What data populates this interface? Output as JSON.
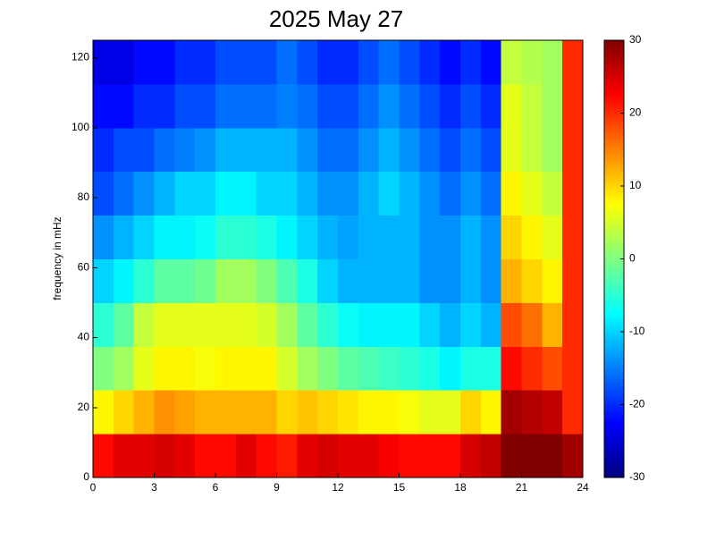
{
  "chart_data": {
    "type": "heatmap",
    "title": "2025 May 27",
    "ylabel": "frequency in mHz",
    "colormap": "jet",
    "xbins": [
      0,
      1,
      2,
      3,
      4,
      5,
      6,
      7,
      8,
      9,
      10,
      11,
      12,
      13,
      14,
      15,
      16,
      17,
      18,
      19,
      20,
      21,
      22,
      23,
      24
    ],
    "ybins": [
      0,
      12.5,
      25,
      37.5,
      50,
      62.5,
      75,
      87.5,
      100,
      112.5,
      125
    ],
    "z": [
      [
        22,
        24,
        24,
        25,
        24,
        22,
        22,
        24,
        22,
        21,
        24,
        25,
        24,
        24,
        23,
        22,
        22,
        22,
        25,
        26,
        30,
        30,
        30,
        28
      ],
      [
        8,
        10,
        12,
        14,
        13,
        12,
        12,
        12,
        12,
        10,
        11,
        10,
        9,
        8,
        8,
        7,
        6,
        6,
        10,
        8,
        28,
        27,
        26,
        20
      ],
      [
        0,
        2,
        6,
        8,
        8,
        7,
        8,
        8,
        8,
        5,
        2,
        0,
        -2,
        -3,
        -4,
        -5,
        -6,
        -8,
        -6,
        -6,
        22,
        20,
        18,
        20
      ],
      [
        -5,
        -2,
        4,
        6,
        6,
        6,
        6,
        6,
        5,
        2,
        -2,
        -5,
        -7,
        -8,
        -8,
        -8,
        -10,
        -12,
        -10,
        -12,
        18,
        16,
        12,
        20
      ],
      [
        -10,
        -8,
        -5,
        -2,
        -2,
        -1,
        2,
        2,
        0,
        -3,
        -6,
        -10,
        -12,
        -12,
        -12,
        -12,
        -14,
        -14,
        -12,
        -14,
        12,
        10,
        8,
        20
      ],
      [
        -14,
        -12,
        -10,
        -8,
        -8,
        -7,
        -5,
        -5,
        -6,
        -8,
        -10,
        -12,
        -13,
        -12,
        -12,
        -12,
        -14,
        -14,
        -12,
        -14,
        10,
        8,
        6,
        20
      ],
      [
        -18,
        -16,
        -14,
        -12,
        -10,
        -10,
        -8,
        -8,
        -10,
        -10,
        -12,
        -14,
        -14,
        -12,
        -10,
        -12,
        -14,
        -16,
        -14,
        -16,
        8,
        6,
        4,
        20
      ],
      [
        -20,
        -18,
        -18,
        -16,
        -15,
        -14,
        -12,
        -12,
        -12,
        -12,
        -14,
        -16,
        -16,
        -14,
        -12,
        -14,
        -16,
        -18,
        -16,
        -18,
        6,
        4,
        2,
        20
      ],
      [
        -22,
        -22,
        -20,
        -20,
        -18,
        -18,
        -16,
        -16,
        -16,
        -15,
        -16,
        -18,
        -18,
        -16,
        -14,
        -16,
        -18,
        -20,
        -18,
        -20,
        6,
        4,
        2,
        20
      ],
      [
        -24,
        -24,
        -22,
        -22,
        -20,
        -20,
        -18,
        -18,
        -18,
        -16,
        -18,
        -20,
        -20,
        -18,
        -16,
        -18,
        -20,
        -22,
        -20,
        -22,
        4,
        3,
        2,
        20
      ]
    ],
    "xlim": [
      0,
      24
    ],
    "xticks": [
      0,
      3,
      6,
      9,
      12,
      15,
      18,
      21,
      24
    ],
    "ylim": [
      0,
      125
    ],
    "yticks": [
      0,
      20,
      40,
      60,
      80,
      100,
      120
    ],
    "clim": [
      -30,
      30
    ],
    "cticks": [
      -30,
      -20,
      -10,
      0,
      10,
      20,
      30
    ]
  }
}
